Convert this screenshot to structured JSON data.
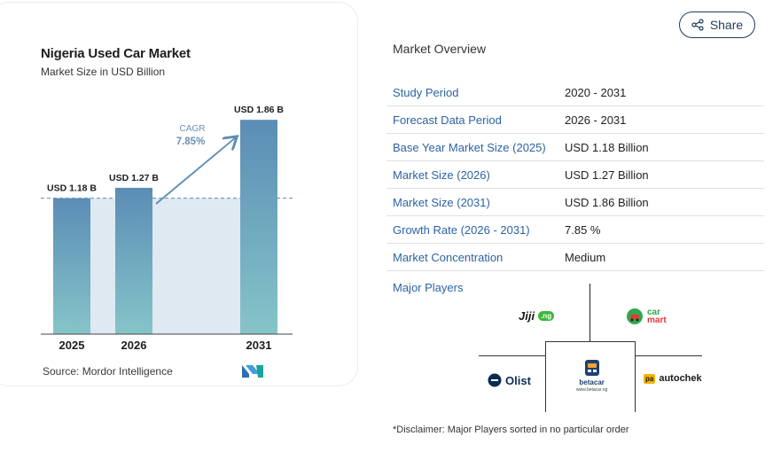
{
  "chart_data": {
    "type": "bar",
    "title": "Nigeria Used Car Market",
    "subtitle": "Market Size in USD Billion",
    "categories": [
      "2025",
      "2026",
      "2031"
    ],
    "values": [
      1.18,
      1.27,
      1.86
    ],
    "data_labels": [
      "USD 1.18 B",
      "USD 1.27 B",
      "USD 1.86 B"
    ],
    "annotation": {
      "label": "CAGR",
      "value": "7.85%"
    },
    "ylim": [
      0,
      2.0
    ],
    "grid": false,
    "bar_color_top": "#5b8db5",
    "bar_color_bottom": "#86c4c9",
    "shade_color": "#dfe9f2",
    "dash_color": "#5b8db5"
  },
  "source": {
    "label": "Source:",
    "name": "Mordor Intelligence"
  },
  "share": {
    "label": "Share"
  },
  "overview": {
    "title": "Market Overview",
    "rows": [
      {
        "key": "Study Period",
        "value": "2020 - 2031"
      },
      {
        "key": "Forecast Data Period",
        "value": "2026 - 2031"
      },
      {
        "key": "Base Year Market Size (2025)",
        "value": "USD 1.18 Billion"
      },
      {
        "key": "Market Size (2026)",
        "value": "USD 1.27 Billion"
      },
      {
        "key": "Market Size (2031)",
        "value": "USD 1.86 Billion"
      },
      {
        "key": "Growth Rate (2026 - 2031)",
        "value": "7.85 %"
      },
      {
        "key": "Market Concentration",
        "value": "Medium"
      }
    ]
  },
  "players": {
    "title": "Major Players",
    "jiji": "Jiji",
    "jiji_suffix": ".ng",
    "carmart_1": "car",
    "carmart_2": "mart",
    "olist": "Olist",
    "autochek": "autochek",
    "autochek_badge": "pa",
    "betacar": "betacar",
    "betacar_url": "www.betacar.ng"
  },
  "disclaimer": "*Disclaimer: Major Players sorted in no particular order",
  "colors": {
    "accent": "#2d62a3",
    "share_border": "#1e3d59"
  }
}
